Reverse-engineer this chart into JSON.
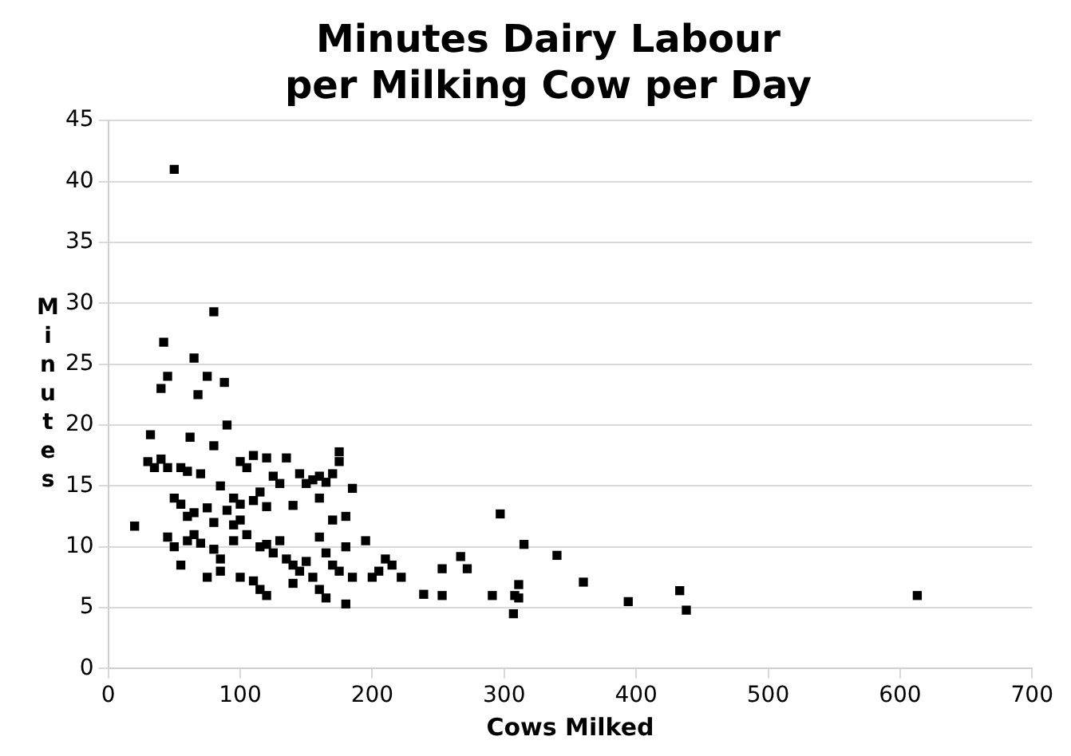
{
  "chart_data": {
    "type": "scatter",
    "title": "Minutes Dairy Labour\nper Milking Cow per Day",
    "xlabel": "Cows Milked",
    "ylabel": "Minutes",
    "xlim": [
      0,
      700
    ],
    "xticks": [
      0,
      100,
      200,
      300,
      400,
      500,
      600,
      700
    ],
    "ylim": [
      0,
      45
    ],
    "yticks": [
      0,
      5,
      10,
      15,
      20,
      25,
      30,
      35,
      40,
      45
    ],
    "grid": "y",
    "marker": "square",
    "legend": false,
    "series": [
      {
        "color": "#000000",
        "x": [
          50,
          80,
          42,
          65,
          88,
          75,
          40,
          45,
          68,
          90,
          32,
          62,
          80,
          110,
          120,
          135,
          175,
          175,
          30,
          35,
          40,
          45,
          55,
          60,
          70,
          100,
          105,
          125,
          145,
          155,
          160,
          165,
          170,
          150,
          130,
          115,
          85,
          95,
          100,
          110,
          120,
          140,
          160,
          185,
          170,
          180,
          90,
          75,
          65,
          55,
          50,
          60,
          80,
          95,
          100,
          105,
          20,
          45,
          50,
          60,
          65,
          70,
          80,
          85,
          95,
          115,
          120,
          125,
          130,
          135,
          140,
          145,
          150,
          155,
          160,
          165,
          170,
          175,
          180,
          185,
          195,
          200,
          205,
          210,
          215,
          222,
          239,
          253,
          253,
          267,
          272,
          291,
          297,
          307,
          308,
          311,
          311,
          315,
          340,
          360,
          394,
          433,
          438,
          613,
          55,
          75,
          85,
          110,
          115,
          120,
          140,
          160,
          165,
          180,
          100
        ],
        "values": [
          41,
          29.3,
          26.8,
          25.5,
          23.5,
          24,
          23,
          24,
          22.5,
          20,
          19.2,
          19,
          18.3,
          17.5,
          17.3,
          17.3,
          17.8,
          17,
          17,
          16.5,
          17.2,
          16.5,
          16.5,
          16.2,
          16,
          17,
          16.5,
          15.8,
          16,
          15.5,
          15.8,
          15.3,
          16,
          15.2,
          15.2,
          14.5,
          15,
          14,
          13.5,
          13.8,
          13.3,
          13.4,
          14,
          14.8,
          12.2,
          12.5,
          13,
          13.2,
          12.8,
          13.5,
          14,
          12.5,
          12,
          11.8,
          12.2,
          11,
          11.7,
          10.8,
          10,
          10.5,
          11,
          10.3,
          9.8,
          9,
          10.5,
          10,
          10.2,
          9.5,
          10.5,
          9,
          8.5,
          8,
          8.8,
          7.5,
          10.8,
          9.5,
          8.5,
          8,
          10,
          7.5,
          10.5,
          7.5,
          8,
          9,
          8.5,
          7.5,
          6.1,
          6,
          8.2,
          9.2,
          8.2,
          6,
          12.7,
          4.5,
          6,
          6.9,
          5.8,
          10.2,
          9.3,
          7.1,
          5.5,
          6.4,
          4.8,
          6,
          8.5,
          7.5,
          8,
          7.2,
          6.5,
          6,
          7,
          6.5,
          5.8,
          5.3,
          7.5
        ]
      }
    ]
  }
}
